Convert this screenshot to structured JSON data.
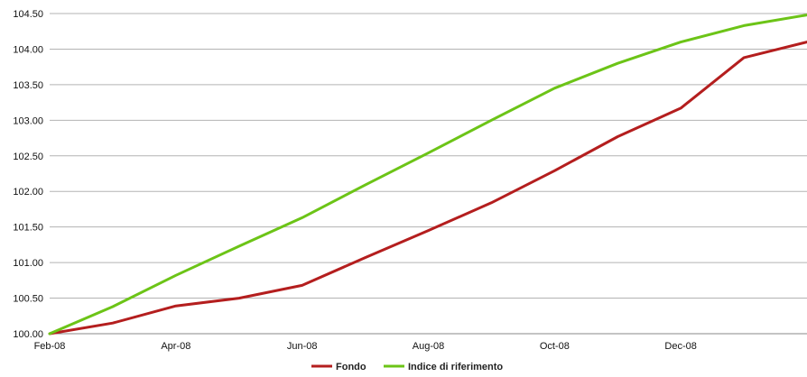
{
  "chart_data": {
    "type": "line",
    "x": [
      "Feb-08",
      "Mar-08",
      "Apr-08",
      "May-08",
      "Jun-08",
      "Jul-08",
      "Aug-08",
      "Sep-08",
      "Oct-08",
      "Nov-08",
      "Dec-08",
      "Jan-09",
      "Feb-09"
    ],
    "xticks": [
      "Feb-08",
      "Apr-08",
      "Jun-08",
      "Aug-08",
      "Oct-08",
      "Dec-08"
    ],
    "yticks": [
      "100.00",
      "100.50",
      "101.00",
      "101.50",
      "102.00",
      "102.50",
      "103.00",
      "103.50",
      "104.00",
      "104.50"
    ],
    "ylim": [
      100.0,
      104.5
    ],
    "grid": true,
    "legend": "bottom",
    "series": [
      {
        "name": "Fondo",
        "color": "#b41e1e",
        "values": [
          100.0,
          100.15,
          100.39,
          100.5,
          100.68,
          101.07,
          101.45,
          101.84,
          102.29,
          102.77,
          103.17,
          103.88,
          104.1
        ]
      },
      {
        "name": "Indice di riferimento",
        "color": "#6cc417",
        "values": [
          100.0,
          100.38,
          100.82,
          101.23,
          101.63,
          102.09,
          102.54,
          103.0,
          103.45,
          103.8,
          104.1,
          104.33,
          104.48
        ]
      }
    ]
  }
}
